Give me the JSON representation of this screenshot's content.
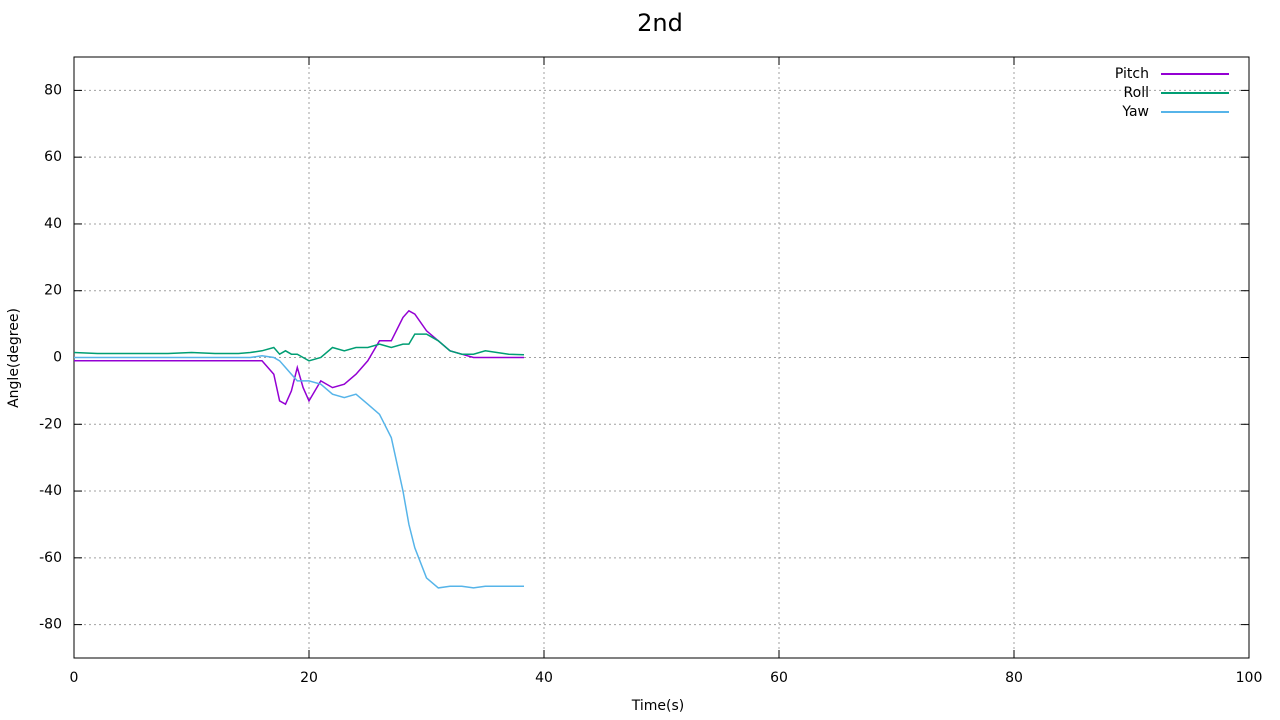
{
  "chart_data": {
    "type": "line",
    "title": "2nd",
    "x_label": "Time(s)",
    "y_label": "Angle(degree)",
    "x": [
      0,
      2,
      4,
      6,
      8,
      10,
      12,
      14,
      15,
      16,
      17,
      17.5,
      18,
      18.5,
      19,
      19.5,
      20,
      21,
      22,
      23,
      24,
      25,
      26,
      27,
      28,
      28.5,
      29,
      30,
      31,
      32,
      33,
      34,
      35,
      36,
      37,
      38.3
    ],
    "series": [
      {
        "name": "Pitch",
        "color": "#9400d3",
        "values": [
          -1,
          -1,
          -1,
          -1,
          -1,
          -1,
          -1,
          -1,
          -1,
          -1,
          -5,
          -13,
          -14,
          -10,
          -3,
          -9,
          -13,
          -7,
          -9,
          -8,
          -5,
          -1,
          5,
          5,
          12,
          14,
          13,
          8,
          5,
          2,
          1,
          0,
          0,
          0,
          0,
          0
        ]
      },
      {
        "name": "Roll",
        "color": "#009e73",
        "values": [
          1.5,
          1.2,
          1.2,
          1.2,
          1.2,
          1.5,
          1.2,
          1.2,
          1.5,
          2,
          3,
          1,
          2,
          1,
          1,
          0,
          -1,
          0,
          3,
          2,
          3,
          3,
          4,
          3,
          4,
          4,
          7,
          7,
          5,
          2,
          1,
          1,
          2,
          1.5,
          1,
          0.8
        ]
      },
      {
        "name": "Yaw",
        "color": "#56b4e9",
        "values": [
          0,
          0,
          0,
          0,
          0,
          0,
          0,
          0,
          0,
          0.5,
          0,
          -1,
          -3,
          -5,
          -7,
          -7,
          -7,
          -8,
          -11,
          -12,
          -11,
          -14,
          -17,
          -24,
          -40,
          -50,
          -57,
          -66,
          -69,
          -68.5,
          -68.5,
          -69,
          -68.5,
          -68.5,
          -68.5,
          -68.5
        ]
      }
    ],
    "xlim": [
      0,
      100
    ],
    "xticks": [
      0,
      20,
      40,
      60,
      80,
      100
    ],
    "ylim": [
      -90,
      90
    ],
    "yticks": [
      -80,
      -60,
      -40,
      -20,
      0,
      20,
      40,
      60,
      80
    ],
    "grid": true,
    "legend": "top-right"
  }
}
